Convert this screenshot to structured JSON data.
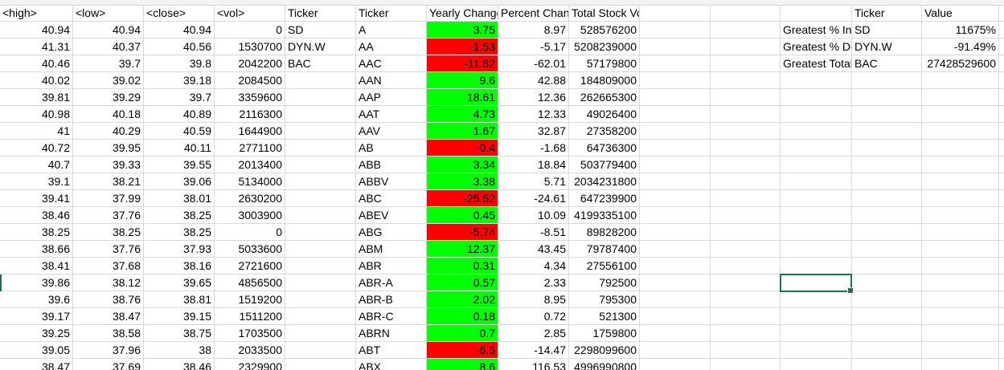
{
  "sheet": {
    "headers": {
      "high": "<high>",
      "low": "<low>",
      "close": "<close>",
      "vol": "<vol>",
      "ticker_raw": "Ticker",
      "ticker": "Ticker",
      "yearly_change": "Yearly Change",
      "percent_change": "Percent Change",
      "total_volume": "Total Stock Volume",
      "summary_ticker": "Ticker",
      "summary_value": "Value"
    },
    "rows": [
      {
        "high": "40.94",
        "low": "40.94",
        "close": "40.94",
        "vol": "0",
        "e": "SD",
        "ticker": "A",
        "yc": "3.75",
        "pc": "8.97",
        "tv": "528576200",
        "sign": "pos"
      },
      {
        "high": "41.31",
        "low": "40.37",
        "close": "40.56",
        "vol": "1530700",
        "e": "DYN.W",
        "ticker": "AA",
        "yc": "-1.53",
        "pc": "-5.17",
        "tv": "5208239000",
        "sign": "neg"
      },
      {
        "high": "40.46",
        "low": "39.7",
        "close": "39.8",
        "vol": "2042200",
        "e": "BAC",
        "ticker": "AAC",
        "yc": "-11.82",
        "pc": "-62.01",
        "tv": "57179800",
        "sign": "neg"
      },
      {
        "high": "40.02",
        "low": "39.02",
        "close": "39.18",
        "vol": "2084500",
        "e": "",
        "ticker": "AAN",
        "yc": "9.6",
        "pc": "42.88",
        "tv": "184809000",
        "sign": "pos"
      },
      {
        "high": "39.81",
        "low": "39.29",
        "close": "39.7",
        "vol": "3359600",
        "e": "",
        "ticker": "AAP",
        "yc": "18.61",
        "pc": "12.36",
        "tv": "262665300",
        "sign": "pos"
      },
      {
        "high": "40.98",
        "low": "40.18",
        "close": "40.89",
        "vol": "2116300",
        "e": "",
        "ticker": "AAT",
        "yc": "4.73",
        "pc": "12.33",
        "tv": "49026400",
        "sign": "pos"
      },
      {
        "high": "41",
        "low": "40.29",
        "close": "40.59",
        "vol": "1644900",
        "e": "",
        "ticker": "AAV",
        "yc": "1.67",
        "pc": "32.87",
        "tv": "27358200",
        "sign": "pos"
      },
      {
        "high": "40.72",
        "low": "39.95",
        "close": "40.11",
        "vol": "2771100",
        "e": "",
        "ticker": "AB",
        "yc": "-0.4",
        "pc": "-1.68",
        "tv": "64736300",
        "sign": "neg"
      },
      {
        "high": "40.7",
        "low": "39.33",
        "close": "39.55",
        "vol": "2013400",
        "e": "",
        "ticker": "ABB",
        "yc": "3.34",
        "pc": "18.84",
        "tv": "503779400",
        "sign": "pos"
      },
      {
        "high": "39.1",
        "low": "38.21",
        "close": "39.06",
        "vol": "5134000",
        "e": "",
        "ticker": "ABBV",
        "yc": "3.38",
        "pc": "5.71",
        "tv": "2034231800",
        "sign": "pos"
      },
      {
        "high": "39.41",
        "low": "37.99",
        "close": "38.01",
        "vol": "2630200",
        "e": "",
        "ticker": "ABC",
        "yc": "-25.52",
        "pc": "-24.61",
        "tv": "647239900",
        "sign": "neg"
      },
      {
        "high": "38.46",
        "low": "37.76",
        "close": "38.25",
        "vol": "3003900",
        "e": "",
        "ticker": "ABEV",
        "yc": "0.45",
        "pc": "10.09",
        "tv": "4199335100",
        "sign": "pos"
      },
      {
        "high": "38.25",
        "low": "38.25",
        "close": "38.25",
        "vol": "0",
        "e": "",
        "ticker": "ABG",
        "yc": "-5.74",
        "pc": "-8.51",
        "tv": "89828200",
        "sign": "neg"
      },
      {
        "high": "38.66",
        "low": "37.76",
        "close": "37.93",
        "vol": "5033600",
        "e": "",
        "ticker": "ABM",
        "yc": "12.37",
        "pc": "43.45",
        "tv": "79787400",
        "sign": "pos"
      },
      {
        "high": "38.41",
        "low": "37.68",
        "close": "38.16",
        "vol": "2721600",
        "e": "",
        "ticker": "ABR",
        "yc": "0.31",
        "pc": "4.34",
        "tv": "27556100",
        "sign": "pos"
      },
      {
        "high": "39.86",
        "low": "38.12",
        "close": "39.65",
        "vol": "4856500",
        "e": "",
        "ticker": "ABR-A",
        "yc": "0.57",
        "pc": "2.33",
        "tv": "792500",
        "sign": "pos"
      },
      {
        "high": "39.6",
        "low": "38.76",
        "close": "38.81",
        "vol": "1519200",
        "e": "",
        "ticker": "ABR-B",
        "yc": "2.02",
        "pc": "8.95",
        "tv": "795300",
        "sign": "pos"
      },
      {
        "high": "39.17",
        "low": "38.47",
        "close": "39.15",
        "vol": "1511200",
        "e": "",
        "ticker": "ABR-C",
        "yc": "0.18",
        "pc": "0.72",
        "tv": "521300",
        "sign": "pos"
      },
      {
        "high": "39.25",
        "low": "38.58",
        "close": "38.75",
        "vol": "1703500",
        "e": "",
        "ticker": "ABRN",
        "yc": "0.7",
        "pc": "2.85",
        "tv": "1759800",
        "sign": "pos"
      },
      {
        "high": "39.05",
        "low": "37.96",
        "close": "38",
        "vol": "2033500",
        "e": "",
        "ticker": "ABT",
        "yc": "-6.5",
        "pc": "-14.47",
        "tv": "2298099600",
        "sign": "neg"
      },
      {
        "high": "38.47",
        "low": "37.69",
        "close": "38.46",
        "vol": "2329900",
        "e": "",
        "ticker": "ABX",
        "yc": "8.6",
        "pc": "116.53",
        "tv": "4996990800",
        "sign": "pos"
      }
    ],
    "summary": [
      {
        "label": "Greatest % Increase",
        "ticker": "SD",
        "value": "11675%"
      },
      {
        "label": "Greatest % Decrease",
        "ticker": "DYN.W",
        "value": "-91.49%"
      },
      {
        "label": "Greatest Total Volume",
        "ticker": "BAC",
        "value": "27428529600"
      }
    ],
    "colors": {
      "positive": "#00ff00",
      "negative": "#ff0000",
      "selection": "#217346",
      "gridline": "#d9d9d9"
    },
    "selected_cell": "Q18"
  }
}
